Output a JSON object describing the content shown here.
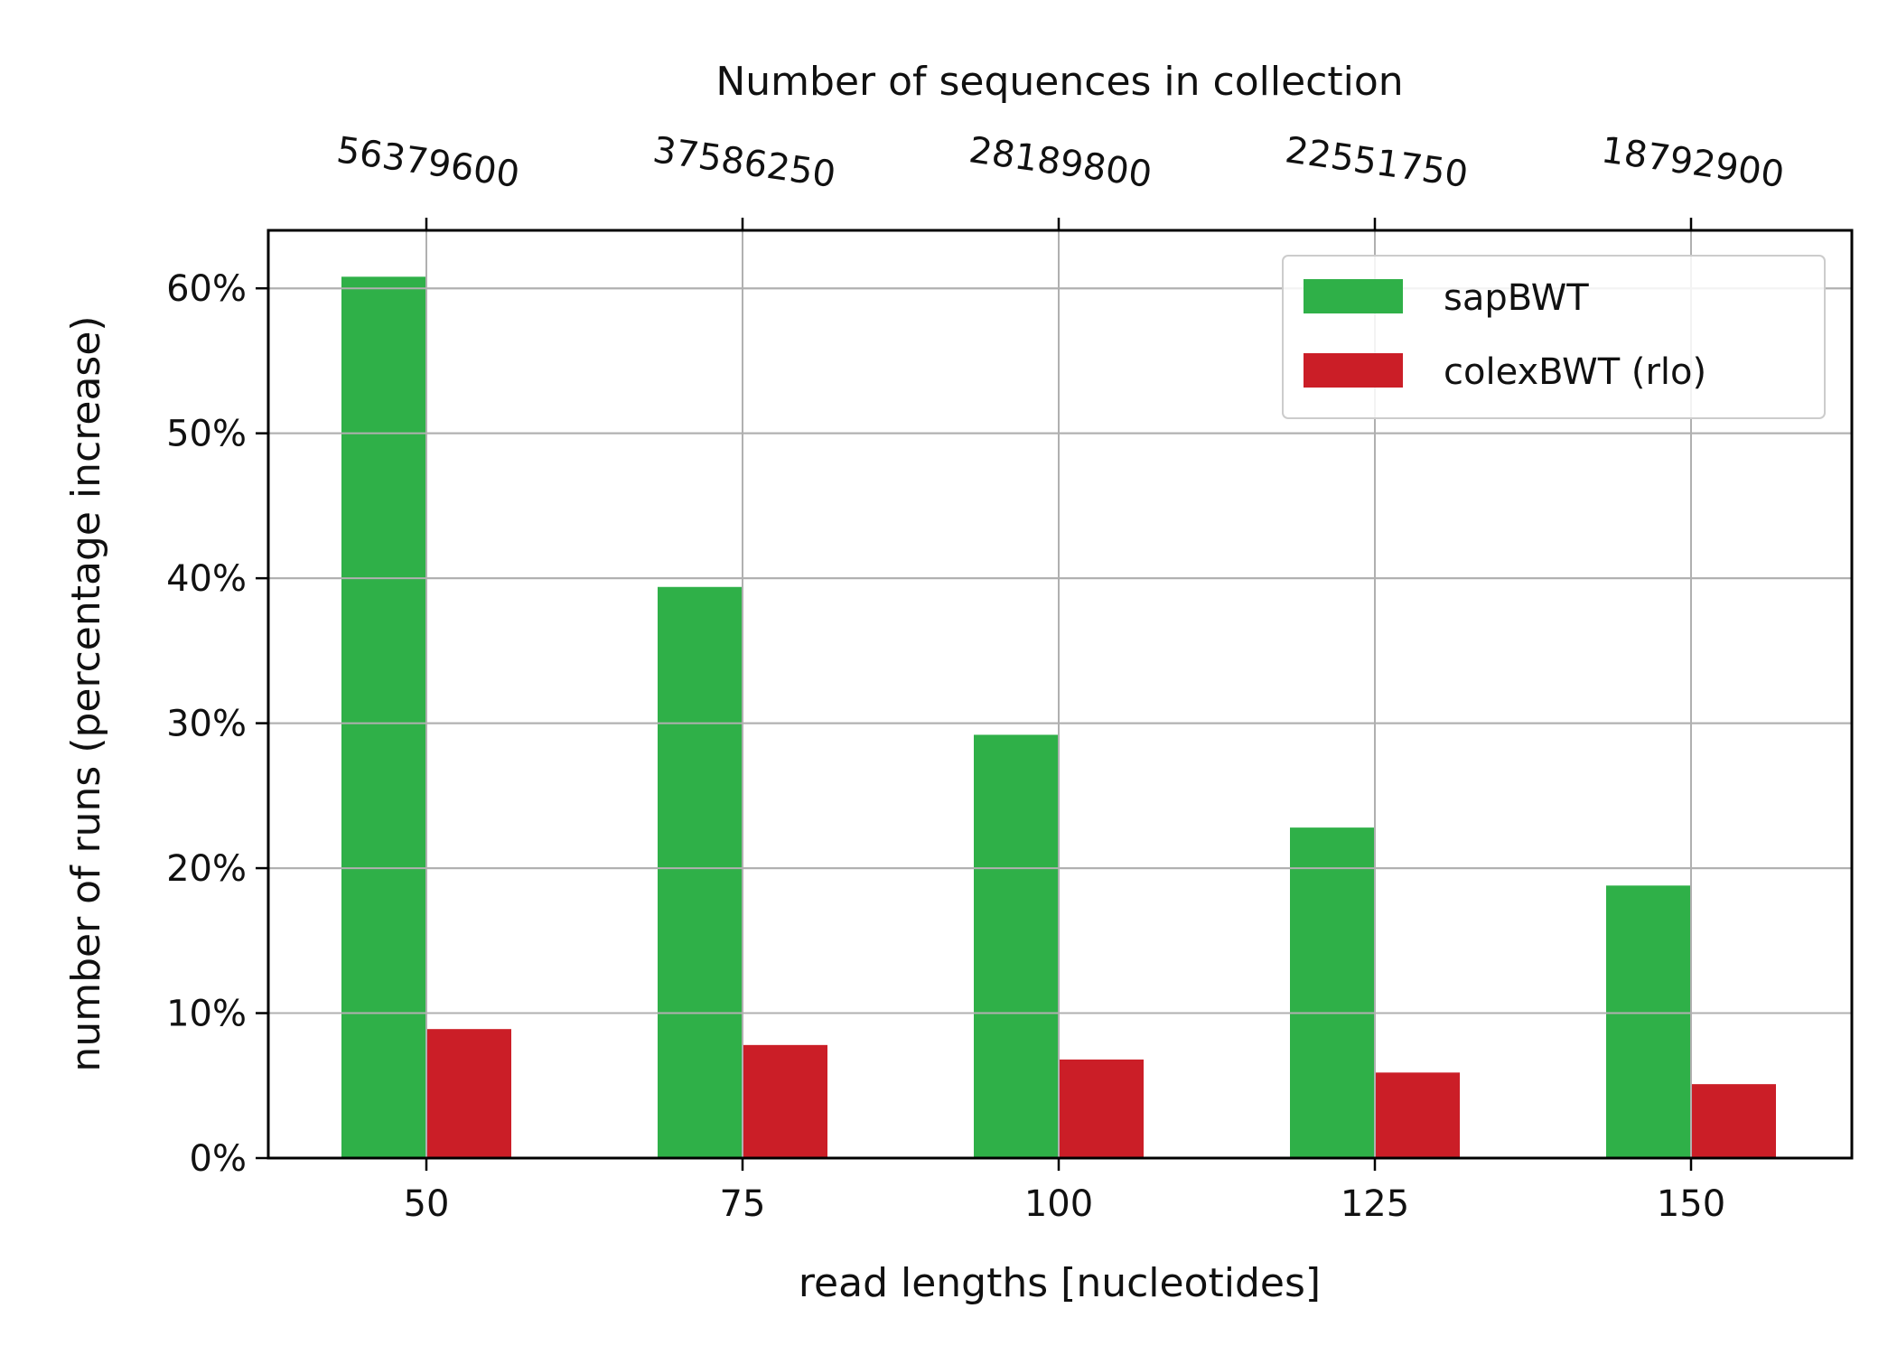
{
  "chart_data": {
    "type": "bar",
    "categories": [
      "50",
      "75",
      "100",
      "125",
      "150"
    ],
    "top_axis": {
      "label": "Number of sequences in collection",
      "tick_labels": [
        "56379600",
        "37586250",
        "28189800",
        "22551750",
        "18792900"
      ]
    },
    "xlabel": "read lengths [nucleotides]",
    "ylabel": "number of runs (percentage increase)",
    "ylim": [
      0,
      64
    ],
    "yticks": [
      0,
      10,
      20,
      30,
      40,
      50,
      60
    ],
    "ytick_labels": [
      "0%",
      "10%",
      "20%",
      "30%",
      "40%",
      "50%",
      "60%"
    ],
    "grid": true,
    "legend_position": "top-right",
    "series": [
      {
        "name": "sapBWT",
        "color": "#2fb048",
        "values": [
          60.8,
          39.4,
          29.2,
          22.8,
          18.8
        ]
      },
      {
        "name": "colexBWT (rlo)",
        "color": "#cb1e27",
        "values": [
          8.9,
          7.8,
          6.8,
          5.9,
          5.1
        ]
      }
    ]
  }
}
